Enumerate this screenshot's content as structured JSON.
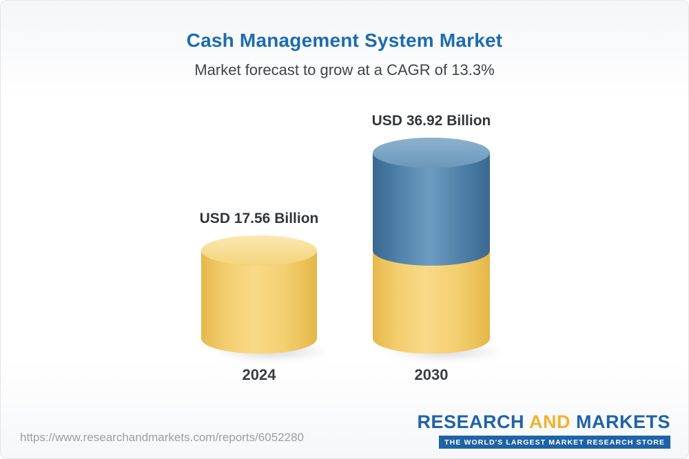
{
  "page": {
    "title": "Cash Management System Market",
    "subtitle": "Market forecast to grow at a CAGR of 13.3%"
  },
  "chart_data": {
    "type": "bar",
    "variant": "3d-cylinder",
    "categories": [
      "2024",
      "2030"
    ],
    "values": [
      17.56,
      36.92
    ],
    "value_labels": [
      "USD 17.56 Billion",
      "USD 36.92 Billion"
    ],
    "unit": "USD Billion",
    "cagr_percent": 13.3,
    "legend": "none",
    "grid": false,
    "segment_note": "2030 cylinder is stacked: yellow base equals the 2024 value, blue top is the forecast growth portion",
    "colors": {
      "bar_2024": "#f4cf70",
      "bar_2030_base": "#f4cf70",
      "bar_2030_growth": "#4f81aa",
      "title_text": "#1c6cb0",
      "label_text": "#333639"
    }
  },
  "footer": {
    "url": "https://www.researchandmarkets.com/reports/6052280",
    "logo": {
      "word1": "RESEARCH",
      "word2": "AND",
      "word3": "MARKETS",
      "tagline": "THE WORLD'S LARGEST MARKET RESEARCH STORE"
    }
  }
}
